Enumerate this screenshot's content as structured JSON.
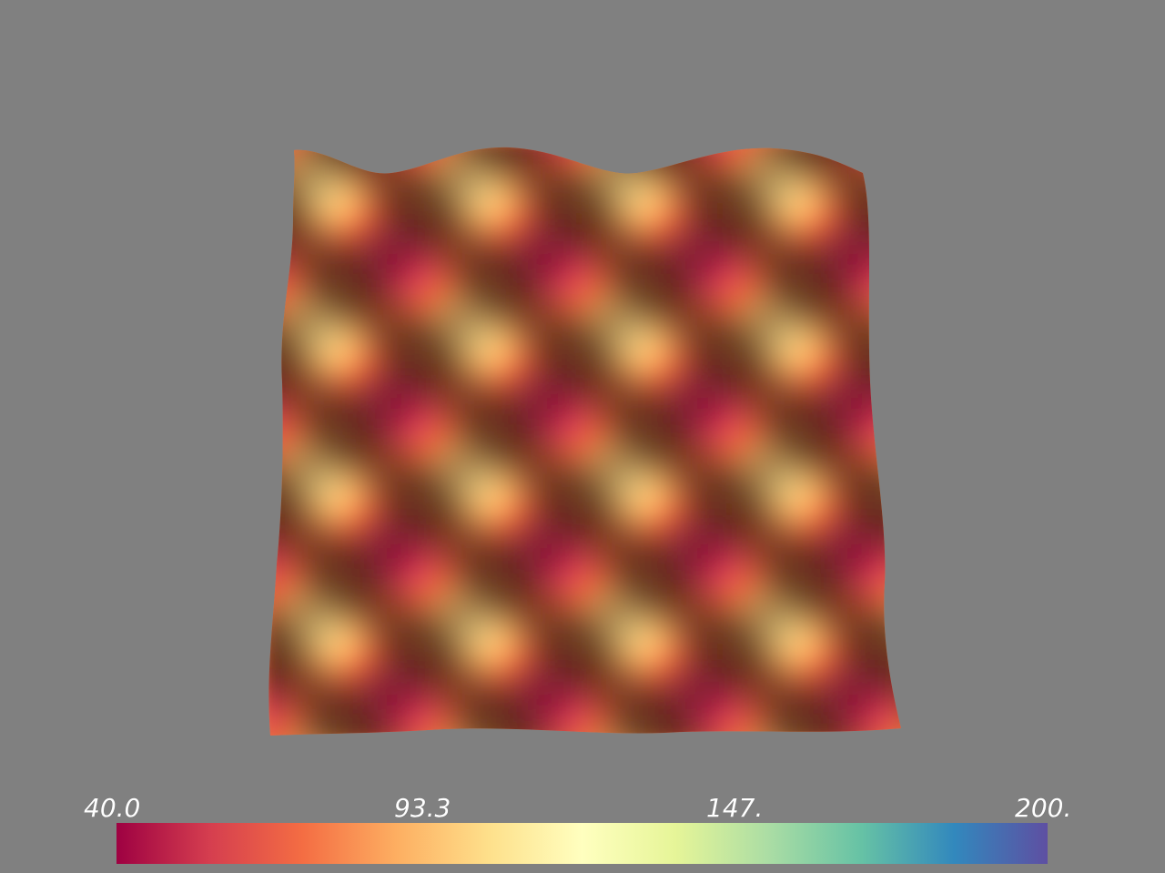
{
  "chart_data": {
    "type": "heatmap",
    "title": "",
    "xlabel": "",
    "ylabel": "",
    "colormap": "Spectral",
    "range": [
      40.0,
      200.0
    ],
    "colorbar": {
      "orientation": "horizontal",
      "placement": "bottom",
      "tick_labels": [
        "40.0",
        "93.3",
        "147.",
        "200."
      ],
      "tick_values": [
        40.0,
        93.3,
        147.0,
        200.0
      ],
      "colors": [
        "#9e0142",
        "#d53e4f",
        "#f46d43",
        "#fdae61",
        "#fee08b",
        "#ffffbf",
        "#e6f598",
        "#abdda4",
        "#66c2a5",
        "#3288bd",
        "#5e4fa2"
      ]
    },
    "surface": {
      "description_values": "wavy surface scalar field, values roughly between 40 and 100 in a diagonal periodic pattern",
      "pattern_periods": 2,
      "min_value_shown": 40.0,
      "max_value_shown": 100.0
    }
  },
  "background_color": "#808080"
}
